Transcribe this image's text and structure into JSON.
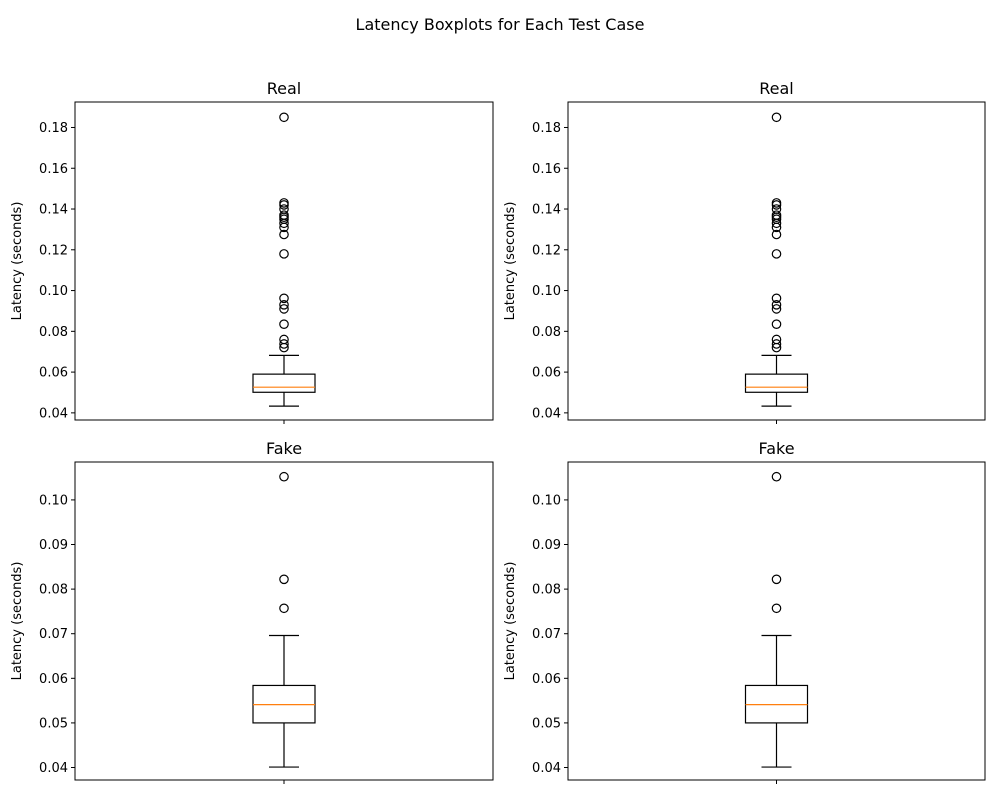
{
  "figure": {
    "title": "Latency Boxplots for Each Test Case"
  },
  "chart_data": [
    {
      "type": "box",
      "title": "Real",
      "xlabel": "",
      "ylabel": "Latency (seconds)",
      "ylim": [
        0.0365,
        0.1925
      ],
      "yticks": [
        0.04,
        0.06,
        0.08,
        0.1,
        0.12,
        0.14,
        0.16,
        0.18
      ],
      "ytick_labels": [
        "0.04",
        "0.06",
        "0.08",
        "0.10",
        "0.12",
        "0.14",
        "0.16",
        "0.18"
      ],
      "box": {
        "whisker_low": 0.0433,
        "q1": 0.0501,
        "median": 0.0526,
        "q3": 0.059,
        "whisker_high": 0.0682,
        "outliers": [
          0.072,
          0.0738,
          0.076,
          0.0835,
          0.091,
          0.093,
          0.0962,
          0.118,
          0.1275,
          0.131,
          0.133,
          0.135,
          0.136,
          0.137,
          0.14,
          0.142,
          0.143,
          0.185
        ]
      },
      "box_color": "#000000",
      "median_color": "#ff7f0e"
    },
    {
      "type": "box",
      "title": "Real",
      "xlabel": "",
      "ylabel": "Latency (seconds)",
      "ylim": [
        0.0365,
        0.1925
      ],
      "yticks": [
        0.04,
        0.06,
        0.08,
        0.1,
        0.12,
        0.14,
        0.16,
        0.18
      ],
      "ytick_labels": [
        "0.04",
        "0.06",
        "0.08",
        "0.10",
        "0.12",
        "0.14",
        "0.16",
        "0.18"
      ],
      "box": {
        "whisker_low": 0.0433,
        "q1": 0.0501,
        "median": 0.0526,
        "q3": 0.059,
        "whisker_high": 0.0682,
        "outliers": [
          0.072,
          0.0738,
          0.076,
          0.0835,
          0.091,
          0.093,
          0.0962,
          0.118,
          0.1275,
          0.131,
          0.133,
          0.135,
          0.136,
          0.137,
          0.14,
          0.142,
          0.143,
          0.185
        ]
      },
      "box_color": "#000000",
      "median_color": "#ff7f0e"
    },
    {
      "type": "box",
      "title": "Fake",
      "xlabel": "",
      "ylabel": "Latency (seconds)",
      "ylim": [
        0.0372,
        0.1085
      ],
      "yticks": [
        0.04,
        0.05,
        0.06,
        0.07,
        0.08,
        0.09,
        0.1
      ],
      "ytick_labels": [
        "0.04",
        "0.05",
        "0.06",
        "0.07",
        "0.08",
        "0.09",
        "0.10"
      ],
      "box": {
        "whisker_low": 0.0401,
        "q1": 0.05,
        "median": 0.0541,
        "q3": 0.0584,
        "whisker_high": 0.0696,
        "outliers": [
          0.0757,
          0.0822,
          0.1052
        ]
      },
      "box_color": "#000000",
      "median_color": "#ff7f0e"
    },
    {
      "type": "box",
      "title": "Fake",
      "xlabel": "",
      "ylabel": "Latency (seconds)",
      "ylim": [
        0.0372,
        0.1085
      ],
      "yticks": [
        0.04,
        0.05,
        0.06,
        0.07,
        0.08,
        0.09,
        0.1
      ],
      "ytick_labels": [
        "0.04",
        "0.05",
        "0.06",
        "0.07",
        "0.08",
        "0.09",
        "0.10"
      ],
      "box": {
        "whisker_low": 0.0401,
        "q1": 0.05,
        "median": 0.0541,
        "q3": 0.0584,
        "whisker_high": 0.0696,
        "outliers": [
          0.0757,
          0.0822,
          0.1052
        ]
      },
      "box_color": "#000000",
      "median_color": "#ff7f0e"
    }
  ]
}
